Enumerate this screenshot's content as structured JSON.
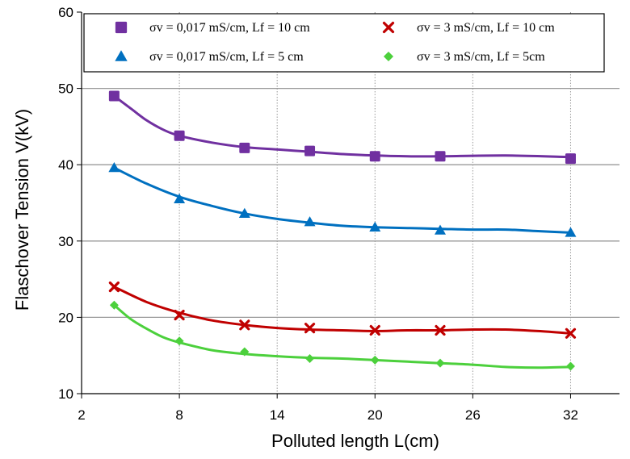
{
  "chart_data": {
    "type": "line",
    "title": "",
    "xlabel": "Polluted length  L(cm)",
    "ylabel": "Flaschover Tension  V(kV)",
    "xlim": [
      2,
      35
    ],
    "ylim": [
      10,
      60
    ],
    "xticks": [
      2,
      8,
      14,
      20,
      26,
      32
    ],
    "yticks": [
      10,
      20,
      30,
      40,
      50,
      60
    ],
    "grid": "horizontal major, vertical dotted",
    "legend_position": "top",
    "x": [
      4,
      8,
      12,
      16,
      20,
      24,
      32
    ],
    "series": [
      {
        "name": "σv = 0,017 mS/cm, Lf = 10 cm",
        "color": "#7030A0",
        "marker": "square",
        "values": [
          49,
          43.8,
          42.2,
          41.8,
          41.1,
          41.1,
          40.8
        ]
      },
      {
        "name": "σv = 0,017 mS/cm, Lf = 5 cm",
        "color": "#0070C0",
        "marker": "triangle",
        "values": [
          39.6,
          35.5,
          33.6,
          32.5,
          31.8,
          31.4,
          31.1
        ]
      },
      {
        "name": "σv = 3 mS/cm, Lf = 10 cm",
        "color": "#C00000",
        "marker": "x",
        "values": [
          24,
          20.3,
          19,
          18.6,
          18.3,
          18.3,
          17.9
        ]
      },
      {
        "name": "σv = 3  mS/cm, Lf = 5cm",
        "color": "#4CD03C",
        "marker": "diamond",
        "values": [
          21.6,
          16.9,
          15.5,
          14.6,
          14.4,
          14,
          13.6
        ]
      }
    ],
    "curves": [
      {
        "color": "#7030A0",
        "points": [
          [
            4,
            49
          ],
          [
            5,
            47.4
          ],
          [
            6,
            45.8
          ],
          [
            7,
            44.6
          ],
          [
            8,
            43.8
          ],
          [
            10,
            42.9
          ],
          [
            12,
            42.3
          ],
          [
            14,
            42
          ],
          [
            16,
            41.7
          ],
          [
            18,
            41.4
          ],
          [
            20,
            41.2
          ],
          [
            22,
            41.1
          ],
          [
            24,
            41.1
          ],
          [
            28,
            41.2
          ],
          [
            32,
            41
          ]
        ]
      },
      {
        "color": "#0070C0",
        "points": [
          [
            4,
            39.6
          ],
          [
            6,
            37.5
          ],
          [
            8,
            35.8
          ],
          [
            10,
            34.6
          ],
          [
            12,
            33.6
          ],
          [
            14,
            32.9
          ],
          [
            16,
            32.4
          ],
          [
            18,
            32
          ],
          [
            20,
            31.8
          ],
          [
            22,
            31.7
          ],
          [
            24,
            31.6
          ],
          [
            26,
            31.5
          ],
          [
            28,
            31.5
          ],
          [
            30,
            31.3
          ],
          [
            32,
            31.1
          ]
        ]
      },
      {
        "color": "#C00000",
        "points": [
          [
            4,
            24
          ],
          [
            6,
            22
          ],
          [
            8,
            20.6
          ],
          [
            10,
            19.6
          ],
          [
            12,
            19
          ],
          [
            14,
            18.6
          ],
          [
            16,
            18.4
          ],
          [
            18,
            18.3
          ],
          [
            20,
            18.2
          ],
          [
            22,
            18.3
          ],
          [
            24,
            18.3
          ],
          [
            26,
            18.4
          ],
          [
            28,
            18.4
          ],
          [
            30,
            18.2
          ],
          [
            32,
            17.9
          ]
        ]
      },
      {
        "color": "#4CD03C",
        "points": [
          [
            4,
            21.6
          ],
          [
            5,
            19.8
          ],
          [
            6,
            18.5
          ],
          [
            7,
            17.4
          ],
          [
            8,
            16.7
          ],
          [
            10,
            15.7
          ],
          [
            12,
            15.2
          ],
          [
            14,
            14.9
          ],
          [
            16,
            14.7
          ],
          [
            18,
            14.6
          ],
          [
            20,
            14.4
          ],
          [
            22,
            14.2
          ],
          [
            24,
            14
          ],
          [
            26,
            13.8
          ],
          [
            28,
            13.5
          ],
          [
            30,
            13.4
          ],
          [
            32,
            13.5
          ]
        ]
      }
    ]
  }
}
